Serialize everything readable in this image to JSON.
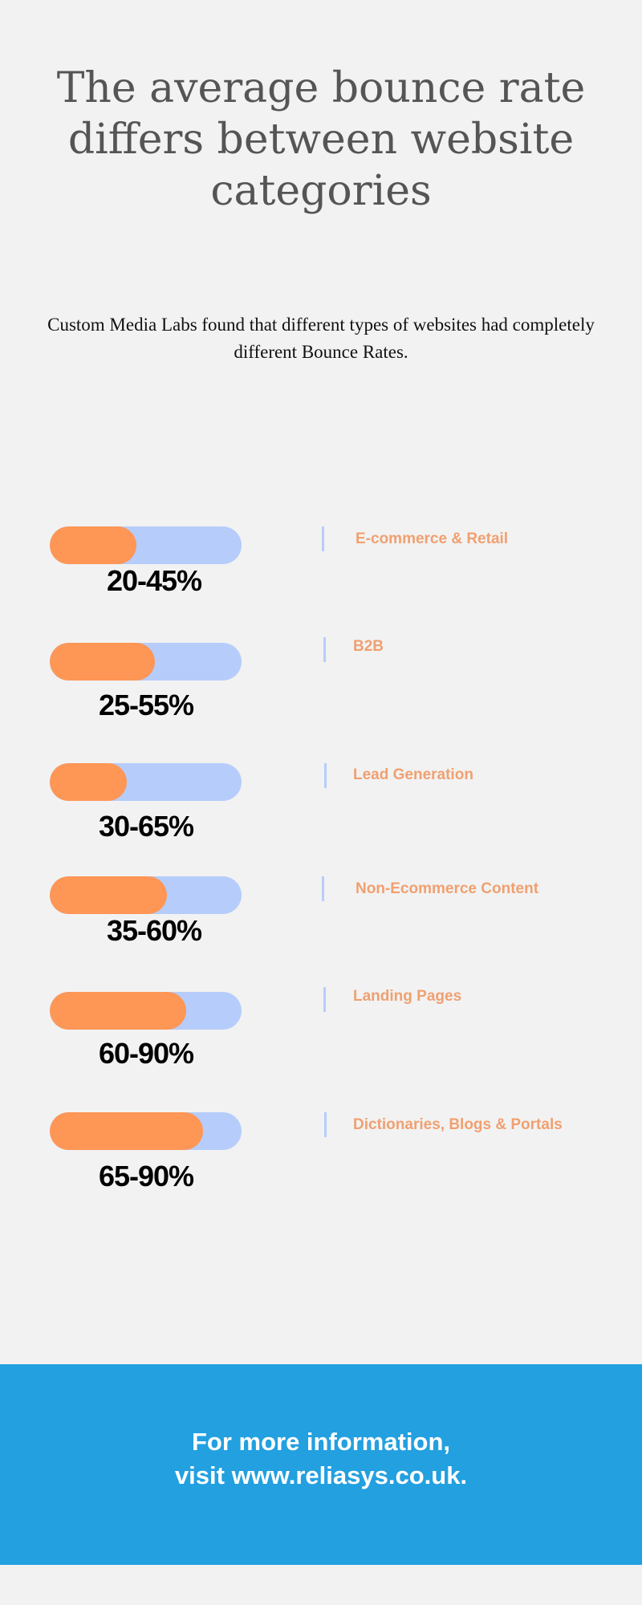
{
  "title": "The average bounce rate differs between website categories",
  "subtitle": "Custom Media Labs found that different types of websites had completely different Bounce Rates.",
  "colors": {
    "background": "#f2f2f2",
    "bar_track": "#b6cdfb",
    "bar_fill": "#fe9656",
    "category_text": "#f0a070",
    "footer": "#22a0e0"
  },
  "items": [
    {
      "range": "20-45%",
      "category": "E-commerce & Retail",
      "fill_percent": 45
    },
    {
      "range": "25-55%",
      "category": "B2B",
      "fill_percent": 55
    },
    {
      "range": "30-65%",
      "category": "Lead Generation",
      "fill_percent": 40
    },
    {
      "range": "35-60%",
      "category": "Non-Ecommerce Content",
      "fill_percent": 61
    },
    {
      "range": "60-90%",
      "category": "Landing Pages",
      "fill_percent": 71
    },
    {
      "range": "65-90%",
      "category": "Dictionaries, Blogs & Portals",
      "fill_percent": 80
    }
  ],
  "footer": {
    "line1": "For more information,",
    "line2": "visit www.reliasys.co.uk."
  }
}
